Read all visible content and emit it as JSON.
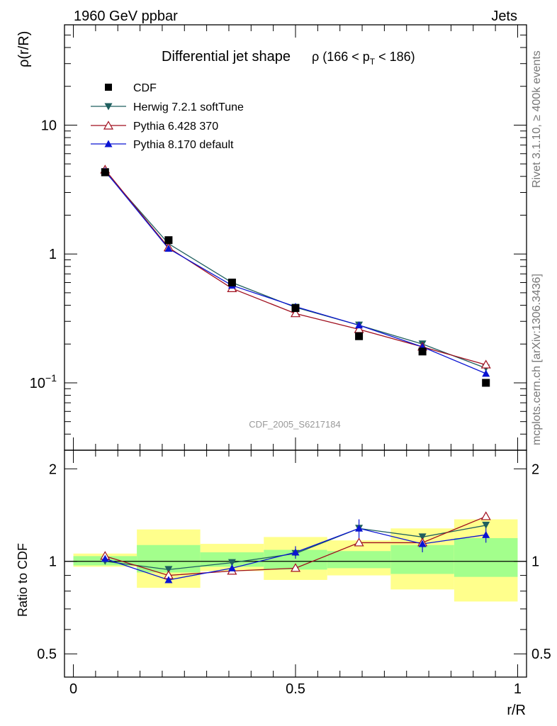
{
  "header": {
    "left": "1960 GeV ppbar",
    "right": "Jets"
  },
  "side_text": {
    "rivet": "Rivet 3.1.10, ≥ 400k events",
    "mcplots": "mcplots.cern.ch [arXiv:1306.3436]"
  },
  "colors": {
    "cdf": "#000000",
    "herwig": "#1f5f5f",
    "pythia6": "#a00f1e",
    "pythia8": "#0a14d2",
    "band_inner": "#a3ff8c",
    "band_outer": "#ffff8c"
  },
  "chart_data": [
    {
      "type": "line",
      "title_main": "Differential jet shape",
      "title_sub_prefix": "ρ (166 < p",
      "title_sub_sub": "T",
      "title_sub_suffix": " < 186)",
      "ylabel": "ρ(r/R)",
      "yscale": "log",
      "ylim": [
        0.03,
        60
      ],
      "xlim": [
        -0.02,
        1.02
      ],
      "yticks": [
        {
          "v": 10,
          "base": "10",
          "sup": ""
        },
        {
          "v": 1,
          "base": "1",
          "sup": ""
        },
        {
          "v": 0.1,
          "base": "10",
          "sup": "−1"
        }
      ],
      "watermark": "CDF_2005_S6217184",
      "x": [
        0.0714,
        0.2143,
        0.3571,
        0.5,
        0.6429,
        0.7857,
        0.9286
      ],
      "series": [
        {
          "name": "CDF",
          "key": "cdf",
          "marker": "square",
          "values": [
            4.3,
            1.28,
            0.6,
            0.38,
            0.23,
            0.175,
            0.1
          ]
        },
        {
          "name": "Herwig 7.2.1 softTune",
          "key": "herwig",
          "marker": "tri-down",
          "values": [
            4.35,
            1.2,
            0.6,
            0.385,
            0.28,
            0.2,
            0.13
          ]
        },
        {
          "name": "Pythia 6.428 370",
          "key": "pythia6",
          "marker": "tri-up-open",
          "values": [
            4.5,
            1.12,
            0.54,
            0.345,
            0.26,
            0.19,
            0.138
          ]
        },
        {
          "name": "Pythia 8.170 default",
          "key": "pythia8",
          "marker": "tri-up",
          "values": [
            4.4,
            1.1,
            0.57,
            0.39,
            0.28,
            0.19,
            0.118
          ]
        }
      ]
    },
    {
      "type": "line",
      "ylabel": "Ratio to CDF",
      "xlabel": "r/R",
      "yscale": "log",
      "ylim": [
        0.42,
        2.3
      ],
      "xlim": [
        -0.02,
        1.02
      ],
      "yticks": [
        {
          "v": 2,
          "label": "2"
        },
        {
          "v": 1,
          "label": "1"
        },
        {
          "v": 0.5,
          "label": "0.5"
        }
      ],
      "xticks": [
        {
          "v": 0,
          "label": "0"
        },
        {
          "v": 0.5,
          "label": "0.5"
        },
        {
          "v": 1,
          "label": "1"
        }
      ],
      "bin_edges": [
        0,
        0.1429,
        0.2857,
        0.4286,
        0.5714,
        0.7143,
        0.8571,
        1.0
      ],
      "band_inner": [
        [
          0.97,
          1.04
        ],
        [
          0.92,
          1.13
        ],
        [
          0.96,
          1.07
        ],
        [
          0.94,
          1.09
        ],
        [
          0.95,
          1.08
        ],
        [
          0.91,
          1.13
        ],
        [
          0.89,
          1.19
        ]
      ],
      "band_outer": [
        [
          0.96,
          1.06
        ],
        [
          0.82,
          1.27
        ],
        [
          0.93,
          1.14
        ],
        [
          0.87,
          1.2
        ],
        [
          0.9,
          1.17
        ],
        [
          0.81,
          1.28
        ],
        [
          0.74,
          1.37
        ]
      ],
      "x": [
        0.0714,
        0.2143,
        0.3571,
        0.5,
        0.6429,
        0.7857,
        0.9286
      ],
      "series": [
        {
          "name": "Herwig 7.2.1 softTune",
          "key": "herwig",
          "marker": "tri-down",
          "values": [
            1.0,
            0.94,
            0.99,
            1.06,
            1.28,
            1.2,
            1.31
          ]
        },
        {
          "name": "Pythia 6.428 370",
          "key": "pythia6",
          "marker": "tri-up-open",
          "values": [
            1.04,
            0.9,
            0.93,
            0.95,
            1.15,
            1.15,
            1.4
          ]
        },
        {
          "name": "Pythia 8.170 default",
          "key": "pythia8",
          "marker": "tri-up",
          "values": [
            1.02,
            0.87,
            0.95,
            1.07,
            1.28,
            1.14,
            1.22
          ]
        }
      ],
      "errors": {
        "pythia8": [
          0.02,
          0.02,
          0.02,
          0.05,
          0.09,
          0.07,
          0.07
        ],
        "pythia6": [
          0.01,
          0.01,
          0.01,
          0.01,
          0.02,
          0.02,
          0.03
        ],
        "herwig": [
          0.01,
          0.01,
          0.01,
          0.01,
          0.02,
          0.02,
          0.03
        ]
      }
    }
  ]
}
